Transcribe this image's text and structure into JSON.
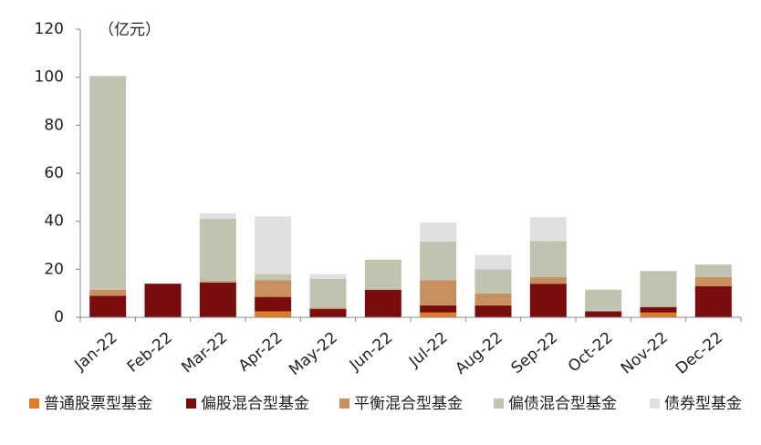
{
  "chart_data": {
    "type": "stacked_bar",
    "y_axis_label": "（亿元）",
    "categories": [
      "Jan-22",
      "Feb-22",
      "Mar-22",
      "Apr-22",
      "May-22",
      "Jun-22",
      "Jul-22",
      "Aug-22",
      "Sep-22",
      "Oct-22",
      "Nov-22",
      "Dec-22"
    ],
    "series": [
      {
        "name": "普通股票型基金",
        "color": "#e07b2a",
        "values": [
          0,
          0,
          0,
          2.5,
          0,
          0,
          2,
          0,
          0,
          0,
          2,
          0
        ]
      },
      {
        "name": "偏股混合型基金",
        "color": "#7a0c0c",
        "values": [
          9,
          14,
          14.5,
          6,
          3.5,
          11.5,
          3,
          5,
          14,
          2.5,
          2.3,
          13
        ]
      },
      {
        "name": "平衡混合型基金",
        "color": "#c89060",
        "values": [
          2.5,
          0,
          0.5,
          7,
          0.5,
          0,
          10.5,
          5,
          2.7,
          0,
          0,
          3.7
        ]
      },
      {
        "name": "偏债混合型基金",
        "color": "#c2c2b0",
        "values": [
          89,
          0,
          26,
          2.5,
          12,
          12.5,
          16,
          10,
          15,
          9,
          15,
          5.3
        ]
      },
      {
        "name": "债券型基金",
        "color": "#e0e0e0",
        "values": [
          0,
          0,
          2.3,
          24,
          2,
          0,
          8,
          6,
          10,
          0,
          0,
          0
        ]
      }
    ],
    "ylim": [
      0,
      120
    ],
    "yticks": [
      0,
      20,
      40,
      60,
      80,
      100,
      120
    ],
    "grid": false,
    "legend": "bottom"
  }
}
